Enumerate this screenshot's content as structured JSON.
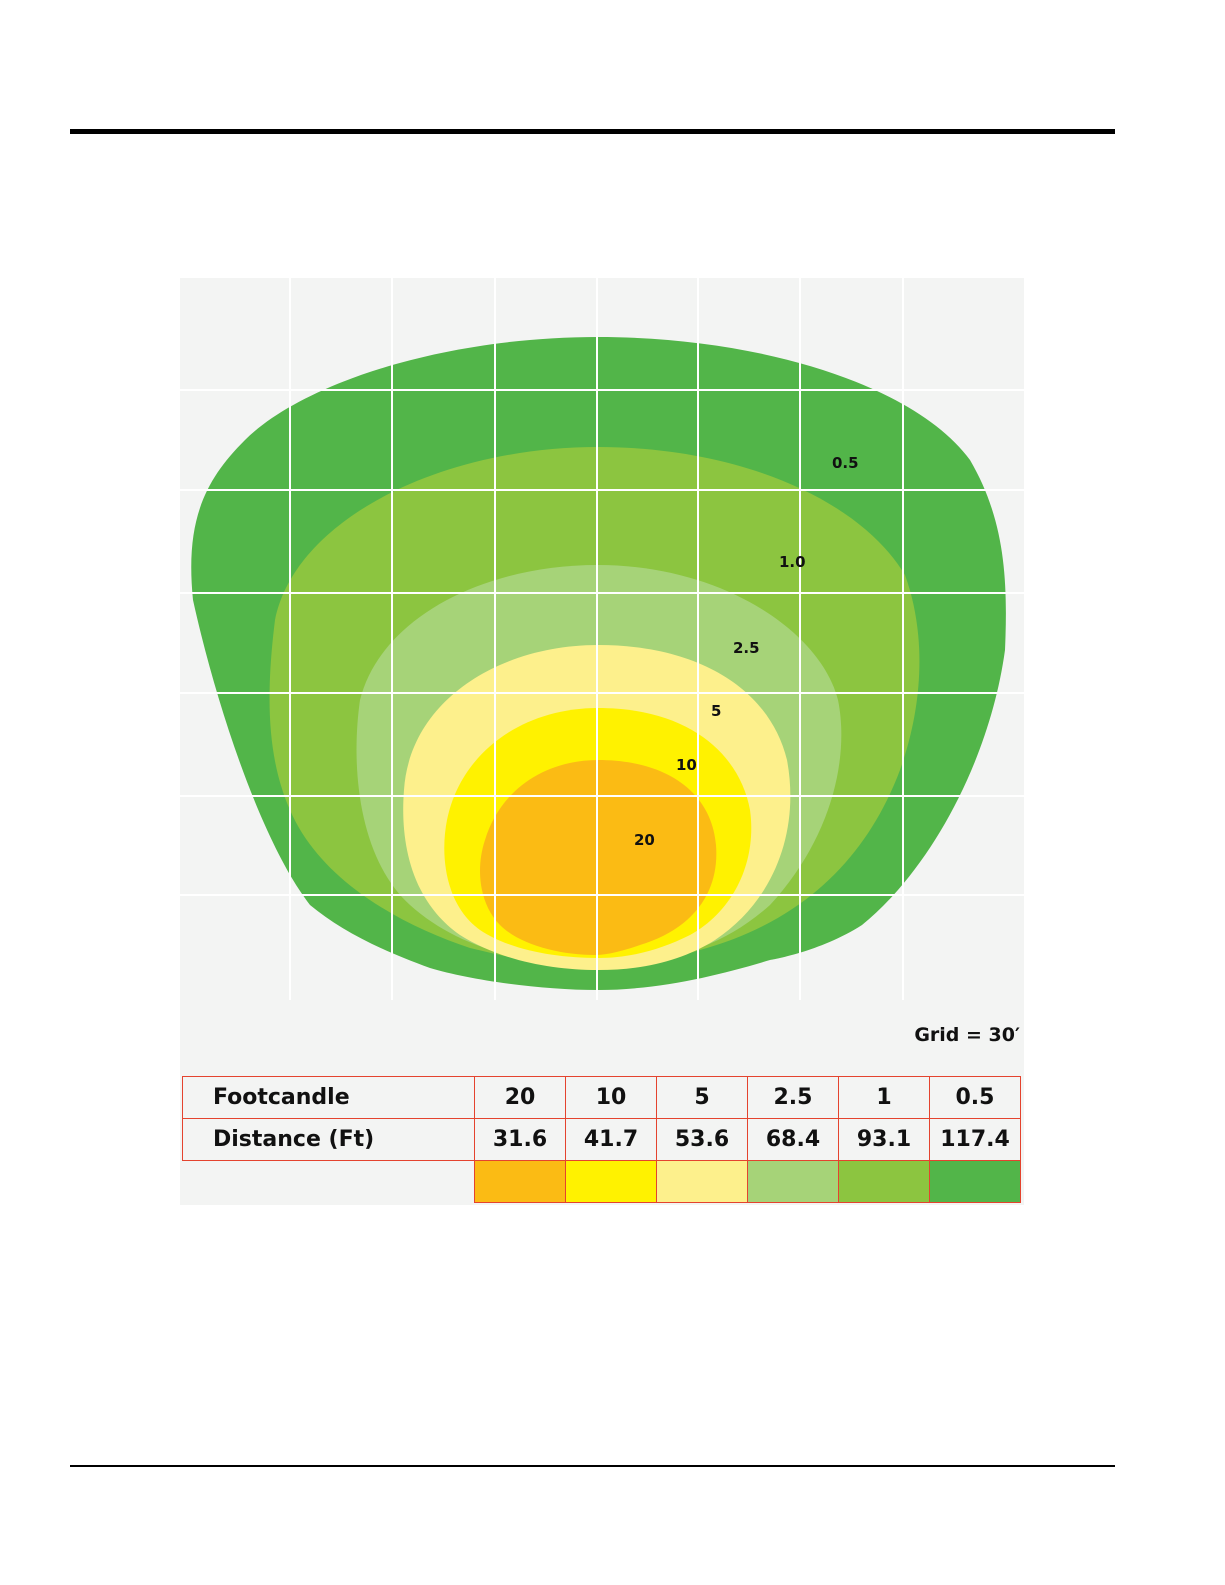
{
  "chart_data": {
    "type": "heatmap",
    "grid_note": "Grid = 30′",
    "contour_labels": [
      "0.5",
      "1.0",
      "2.5",
      "5",
      "10",
      "20"
    ],
    "table": {
      "row_headers": [
        "Footcandle",
        "Distance (Ft)"
      ],
      "footcandle": [
        "20",
        "10",
        "5",
        "2.5",
        "1",
        "0.5"
      ],
      "distance_ft": [
        "31.6",
        "41.7",
        "53.6",
        "68.4",
        "93.1",
        "117.4"
      ]
    },
    "levels": [
      {
        "footcandle": 0.5,
        "distance_ft": 117.4,
        "color": "#52b549"
      },
      {
        "footcandle": 1,
        "distance_ft": 93.1,
        "color": "#8cc540"
      },
      {
        "footcandle": 2.5,
        "distance_ft": 68.4,
        "color": "#a6d378"
      },
      {
        "footcandle": 5,
        "distance_ft": 53.6,
        "color": "#fdf08c"
      },
      {
        "footcandle": 10,
        "distance_ft": 41.7,
        "color": "#fff200"
      },
      {
        "footcandle": 20,
        "distance_ft": 31.6,
        "color": "#fbbb14"
      }
    ],
    "grid": true
  }
}
